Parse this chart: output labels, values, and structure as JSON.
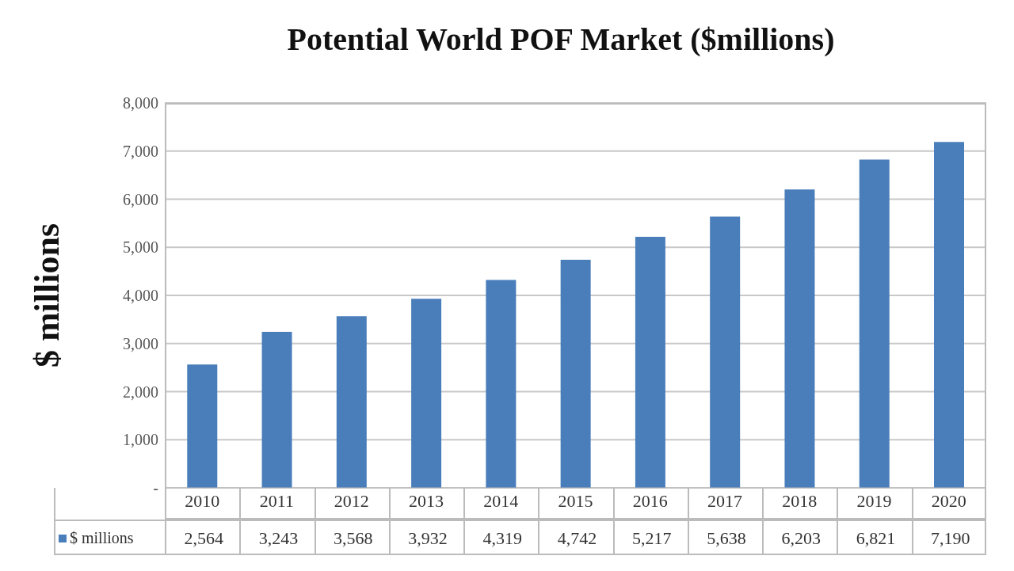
{
  "chart_data": {
    "type": "bar",
    "title": "Potential World POF Market ($millions)",
    "ylabel": "$ millions",
    "categories": [
      "2010",
      "2011",
      "2012",
      "2013",
      "2014",
      "2015",
      "2016",
      "2017",
      "2018",
      "2019",
      "2020"
    ],
    "series": [
      {
        "name": "$ millions",
        "color": "#4a7ebb",
        "values": [
          2564,
          3243,
          3568,
          3932,
          4319,
          4742,
          5217,
          5638,
          6203,
          6821,
          7190
        ],
        "value_labels": [
          "2,564",
          "3,243",
          "3,568",
          "3,932",
          "4,319",
          "4,742",
          "5,217",
          "5,638",
          "6,203",
          "6,821",
          "7,190"
        ]
      }
    ],
    "ylim": [
      0,
      8000
    ],
    "yticks": [
      {
        "value": 0,
        "label": "-"
      },
      {
        "value": 1000,
        "label": "1,000"
      },
      {
        "value": 2000,
        "label": "2,000"
      },
      {
        "value": 3000,
        "label": "3,000"
      },
      {
        "value": 4000,
        "label": "4,000"
      },
      {
        "value": 5000,
        "label": "5,000"
      },
      {
        "value": 6000,
        "label": "6,000"
      },
      {
        "value": 7000,
        "label": "7,000"
      },
      {
        "value": 8000,
        "label": "8,000"
      }
    ],
    "grid": "y",
    "legend": "bottom left"
  }
}
